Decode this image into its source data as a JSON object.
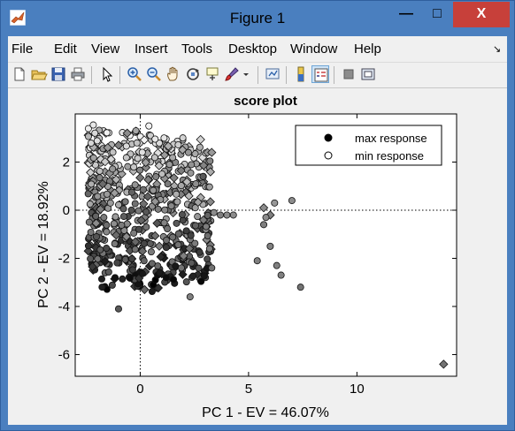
{
  "window": {
    "title": "Figure 1",
    "controls": {
      "minimize": "—",
      "maximize": "□",
      "close": "X"
    }
  },
  "menu": [
    "File",
    "Edit",
    "View",
    "Insert",
    "Tools",
    "Desktop",
    "Window",
    "Help"
  ],
  "menu_arrow": "↘",
  "toolbar_icons": [
    "new-figure-icon",
    "open-file-icon",
    "save-icon",
    "print-icon",
    "pointer-icon",
    "zoom-in-icon",
    "zoom-out-icon",
    "pan-icon",
    "rotate-3d-icon",
    "data-cursor-icon",
    "brush-icon",
    "brush-dropdown-icon",
    "link-plot-icon",
    "colorbar-icon",
    "legend-icon",
    "hide-plot-tools-icon",
    "show-plot-tools-icon"
  ],
  "colors": {
    "titlebar": "#4a7fbf",
    "close_button": "#c7403a",
    "max_marker": "#000000",
    "min_marker": "#ffffff"
  },
  "chart_data": {
    "type": "scatter",
    "title": "score plot",
    "xlabel": "PC 1 - EV = 46.07%",
    "ylabel": "PC 2 - EV = 18.92%",
    "xlim": [
      -3,
      14.6
    ],
    "ylim": [
      -6.9,
      4
    ],
    "xticks": [
      0,
      5,
      10
    ],
    "yticks": [
      -6,
      -4,
      -2,
      0,
      2
    ],
    "grid": false,
    "reference_lines": {
      "x": 0,
      "y": 0,
      "style": "dotted"
    },
    "legend": {
      "placement": "top-right",
      "entries": [
        {
          "label": "max response",
          "marker": "circle",
          "fill": "#000000"
        },
        {
          "label": "min response",
          "marker": "circle",
          "fill": "#ffffff"
        }
      ]
    },
    "color_scale": "marker fill runs from black (max response) to white (min response); shade given as 0 = black, 1 = white",
    "cloud_extent": {
      "x": [
        -2.4,
        3.3
      ],
      "y": [
        -3.4,
        3.6
      ]
    },
    "points": [
      {
        "x": 14.0,
        "y": -6.4,
        "shade": 0.45,
        "marker": "diamond"
      },
      {
        "x": 7.4,
        "y": -3.2,
        "shade": 0.45,
        "marker": "circle"
      },
      {
        "x": 7.0,
        "y": 0.4,
        "shade": 0.55,
        "marker": "circle"
      },
      {
        "x": 6.2,
        "y": 0.3,
        "shade": 0.6,
        "marker": "circle"
      },
      {
        "x": 6.0,
        "y": -1.5,
        "shade": 0.5,
        "marker": "circle"
      },
      {
        "x": 5.7,
        "y": -0.6,
        "shade": 0.5,
        "marker": "circle"
      },
      {
        "x": 5.4,
        "y": -2.1,
        "shade": 0.5,
        "marker": "circle"
      },
      {
        "x": 5.7,
        "y": 0.1,
        "shade": 0.55,
        "marker": "diamond"
      },
      {
        "x": 6.0,
        "y": -0.2,
        "shade": 0.5,
        "marker": "diamond"
      },
      {
        "x": 6.5,
        "y": -2.7,
        "shade": 0.5,
        "marker": "circle"
      },
      {
        "x": 6.3,
        "y": -2.3,
        "shade": 0.5,
        "marker": "circle"
      },
      {
        "x": 5.8,
        "y": -0.3,
        "shade": 0.55,
        "marker": "circle"
      },
      {
        "x": 4.3,
        "y": -0.2,
        "shade": 0.55,
        "marker": "circle"
      },
      {
        "x": 3.3,
        "y": -2.4,
        "shade": 0.45,
        "marker": "circle"
      },
      {
        "x": 3.7,
        "y": -0.2,
        "shade": 0.5,
        "marker": "circle"
      },
      {
        "x": 4.0,
        "y": -0.2,
        "shade": 0.55,
        "marker": "circle"
      },
      {
        "x": 3.2,
        "y": -1.6,
        "shade": 0.5,
        "marker": "circle"
      },
      {
        "x": 3.1,
        "y": 2.4,
        "shade": 0.6,
        "marker": "diamond"
      },
      {
        "x": 3.3,
        "y": 2.4,
        "shade": 0.6,
        "marker": "diamond"
      },
      {
        "x": 2.9,
        "y": 1.4,
        "shade": 0.35,
        "marker": "circle"
      },
      {
        "x": 2.3,
        "y": -3.6,
        "shade": 0.5,
        "marker": "circle"
      },
      {
        "x": -1.0,
        "y": -4.1,
        "shade": 0.35,
        "marker": "circle"
      },
      {
        "x": 0.2,
        "y": -3.3,
        "shade": 0.4,
        "marker": "diamond"
      },
      {
        "x": 0.6,
        "y": -3.1,
        "shade": 0.0,
        "marker": "circle"
      },
      {
        "x": 0.7,
        "y": -2.9,
        "shade": 0.0,
        "marker": "circle"
      },
      {
        "x": 0.8,
        "y": -2.7,
        "shade": 0.05,
        "marker": "circle"
      },
      {
        "x": 0.9,
        "y": -2.6,
        "shade": 0.1,
        "marker": "circle"
      },
      {
        "x": 1.2,
        "y": -2.8,
        "shade": 0.05,
        "marker": "circle"
      },
      {
        "x": 0.4,
        "y": 3.5,
        "shade": 0.95,
        "marker": "circle"
      },
      {
        "x": -0.6,
        "y": 3.2,
        "shade": 0.55,
        "marker": "diamond"
      },
      {
        "x": -0.2,
        "y": 3.3,
        "shade": 0.65,
        "marker": "circle"
      },
      {
        "x": 1.1,
        "y": 3.0,
        "shade": 0.9,
        "marker": "circle"
      },
      {
        "x": -1.0,
        "y": 2.7,
        "shade": 0.5,
        "marker": "diamond"
      },
      {
        "x": -1.5,
        "y": 2.6,
        "shade": 0.6,
        "marker": "diamond"
      },
      {
        "x": 2.0,
        "y": -1.9,
        "shade": 0.5,
        "marker": "diamond"
      },
      {
        "x": 1.9,
        "y": -2.4,
        "shade": 0.45,
        "marker": "circle"
      },
      {
        "x": 3.4,
        "y": -0.1,
        "shade": 0.55,
        "marker": "circle"
      }
    ]
  }
}
